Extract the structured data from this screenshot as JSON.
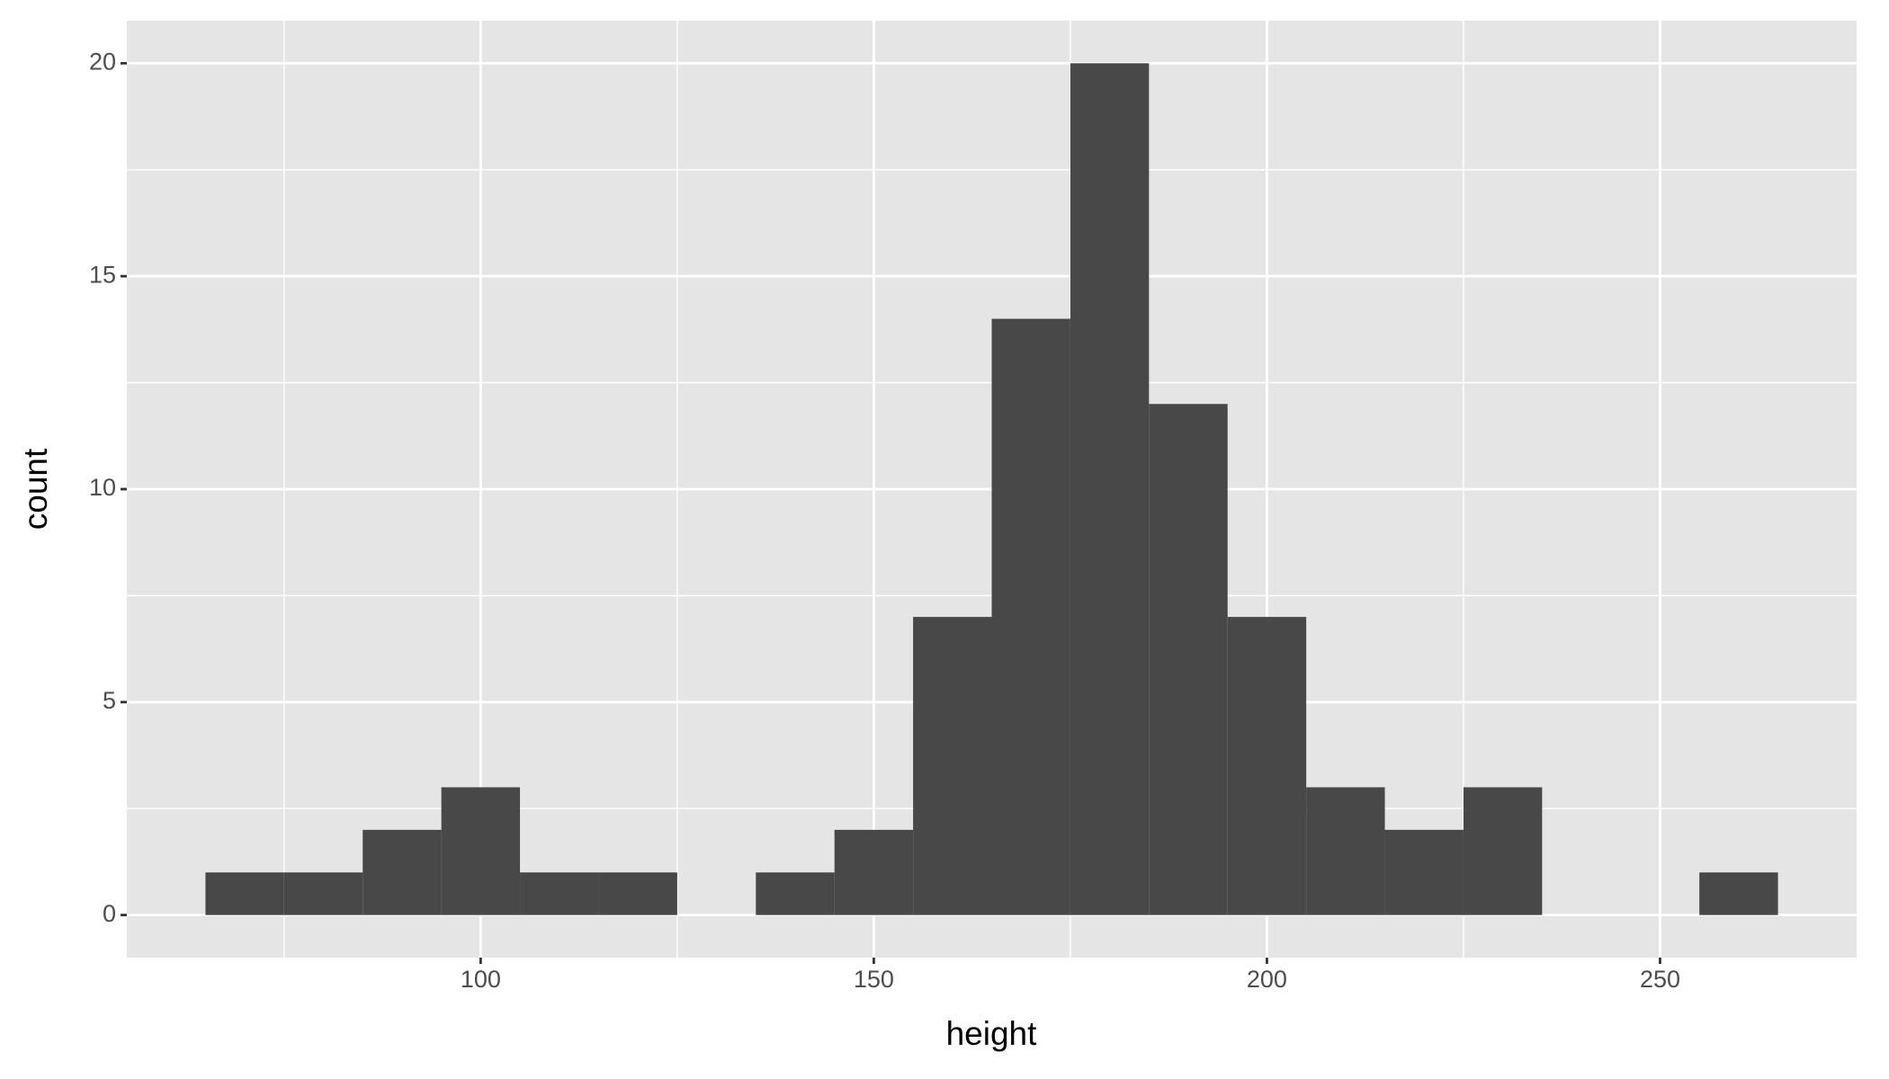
{
  "chart_data": {
    "type": "histogram",
    "x_label": "height",
    "y_label": "count",
    "bins": [
      65,
      75,
      85,
      95,
      105,
      115,
      125,
      135,
      145,
      155,
      165,
      175,
      185,
      195,
      205,
      215,
      225,
      235,
      245,
      255,
      265
    ],
    "counts": [
      1,
      1,
      2,
      3,
      1,
      1,
      0,
      1,
      2,
      7,
      14,
      20,
      12,
      7,
      3,
      2,
      3,
      0,
      0,
      1
    ],
    "color": "#484848",
    "xlim": [
      55,
      275
    ],
    "xticks": [
      100,
      150,
      200,
      250
    ],
    "xminorticks": [
      75,
      125,
      175,
      225
    ],
    "ylim": [
      -1,
      21
    ],
    "yticks": [
      0,
      5,
      10,
      15,
      20
    ],
    "yminorticks": [
      2.5,
      7.5,
      12.5,
      17.5
    ],
    "grid": true
  }
}
